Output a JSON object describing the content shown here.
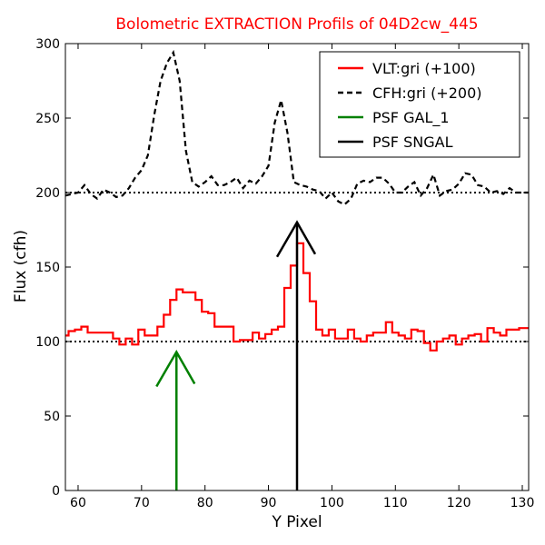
{
  "chart_data": {
    "type": "line",
    "title": "Bolometric EXTRACTION Profils of 04D2cw_445",
    "title_color": "#ff0000",
    "xlabel": "Y Pixel",
    "ylabel": "Flux (cfh)",
    "xlim": [
      58,
      131
    ],
    "ylim": [
      0,
      300
    ],
    "xticks": [
      60,
      70,
      80,
      90,
      100,
      110,
      120,
      130
    ],
    "yticks": [
      0,
      50,
      100,
      150,
      200,
      250,
      300
    ],
    "grid": false,
    "legend_position": "top-right",
    "reference_lines": [
      {
        "y": 100,
        "style": "dotted",
        "color": "#000000"
      },
      {
        "y": 200,
        "style": "dotted",
        "color": "#000000"
      }
    ],
    "series": [
      {
        "name": "VLT:gri (+100)",
        "color": "#ff0000",
        "style": "steps",
        "x": [
          58,
          59,
          60,
          61,
          62,
          63,
          64,
          65,
          66,
          67,
          68,
          69,
          70,
          71,
          72,
          73,
          74,
          75,
          76,
          77,
          78,
          79,
          80,
          81,
          82,
          83,
          84,
          85,
          86,
          87,
          88,
          89,
          90,
          91,
          92,
          93,
          94,
          95,
          96,
          97,
          98,
          99,
          100,
          101,
          102,
          103,
          104,
          105,
          106,
          107,
          108,
          109,
          110,
          111,
          112,
          113,
          114,
          115,
          116,
          117,
          118,
          119,
          120,
          121,
          122,
          123,
          124,
          125,
          126,
          127,
          128,
          129,
          130,
          131
        ],
        "y": [
          104,
          107,
          108,
          110,
          106,
          106,
          106,
          106,
          102,
          98,
          102,
          98,
          108,
          104,
          104,
          110,
          118,
          128,
          135,
          133,
          133,
          128,
          120,
          119,
          110,
          110,
          110,
          100,
          101,
          101,
          106,
          102,
          105,
          108,
          110,
          136,
          151,
          166,
          146,
          127,
          108,
          104,
          108,
          102,
          102,
          108,
          102,
          100,
          104,
          106,
          106,
          113,
          106,
          104,
          102,
          108,
          107,
          99,
          94,
          100,
          102,
          104,
          98,
          102,
          104,
          105,
          100,
          109,
          106,
          104,
          108,
          108,
          109,
          109
        ]
      },
      {
        "name": "CFH:gri (+200)",
        "color": "#000000",
        "style": "dashed",
        "x": [
          58,
          59,
          60,
          61,
          62,
          63,
          64,
          65,
          66,
          67,
          68,
          69,
          70,
          71,
          72,
          73,
          74,
          75,
          76,
          77,
          78,
          79,
          80,
          81,
          82,
          83,
          84,
          85,
          86,
          87,
          88,
          89,
          90,
          91,
          92,
          93,
          94,
          95,
          96,
          97,
          98,
          99,
          100,
          101,
          102,
          103,
          104,
          105,
          106,
          107,
          108,
          109,
          110,
          111,
          112,
          113,
          114,
          115,
          116,
          117,
          118,
          119,
          120,
          121,
          122,
          123,
          124,
          125,
          126,
          127,
          128,
          129,
          130,
          131
        ],
        "y": [
          198,
          199,
          200,
          205,
          199,
          196,
          202,
          200,
          197,
          198,
          203,
          210,
          215,
          225,
          252,
          275,
          287,
          294,
          275,
          228,
          207,
          204,
          207,
          211,
          205,
          205,
          207,
          210,
          203,
          208,
          206,
          211,
          218,
          247,
          262,
          240,
          207,
          205,
          204,
          202,
          201,
          196,
          200,
          194,
          192,
          196,
          206,
          208,
          207,
          210,
          210,
          206,
          200,
          200,
          204,
          207,
          198,
          203,
          212,
          198,
          201,
          202,
          206,
          213,
          212,
          205,
          204,
          200,
          201,
          199,
          203,
          200,
          200,
          200
        ]
      },
      {
        "name": "PSF GAL_1",
        "color": "#008000",
        "style": "arrow",
        "x": [
          75.5
        ],
        "y": [
          93
        ]
      },
      {
        "name": "PSF SNGAL",
        "color": "#000000",
        "style": "arrow",
        "x": [
          94.5
        ],
        "y": [
          180
        ]
      }
    ]
  }
}
